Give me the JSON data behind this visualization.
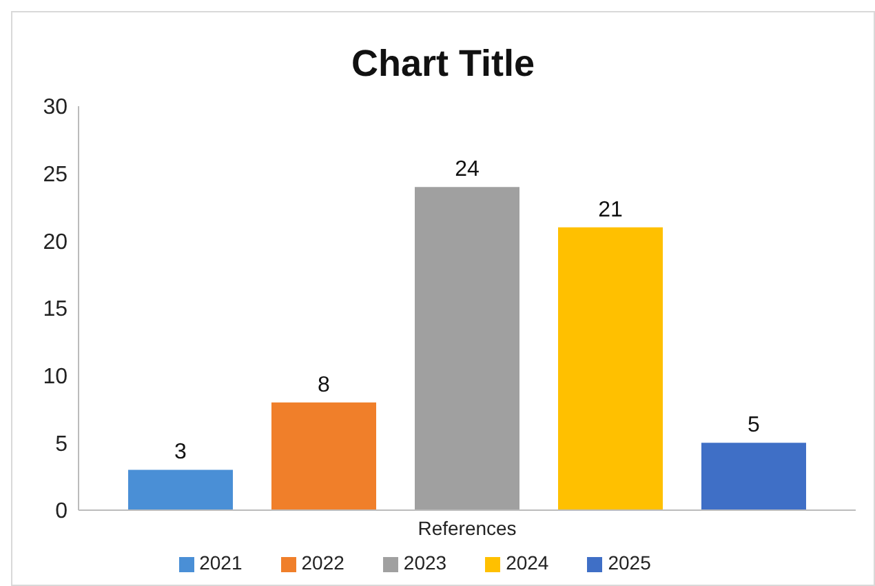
{
  "chart_data": {
    "type": "bar",
    "title": "Chart Title",
    "categories": [
      "References"
    ],
    "series": [
      {
        "name": "2021",
        "color": "#4a8fd6",
        "values": [
          3
        ]
      },
      {
        "name": "2022",
        "color": "#f07f2a",
        "values": [
          8
        ]
      },
      {
        "name": "2023",
        "color": "#a0a0a0",
        "values": [
          24
        ]
      },
      {
        "name": "2024",
        "color": "#ffc000",
        "values": [
          21
        ]
      },
      {
        "name": "2025",
        "color": "#3f6fc6",
        "values": [
          5
        ]
      }
    ],
    "ylim": [
      0,
      30
    ],
    "yticks": [
      0,
      5,
      10,
      15,
      20,
      25,
      30
    ],
    "grid": false,
    "legend": "bottom",
    "data_labels": true
  }
}
